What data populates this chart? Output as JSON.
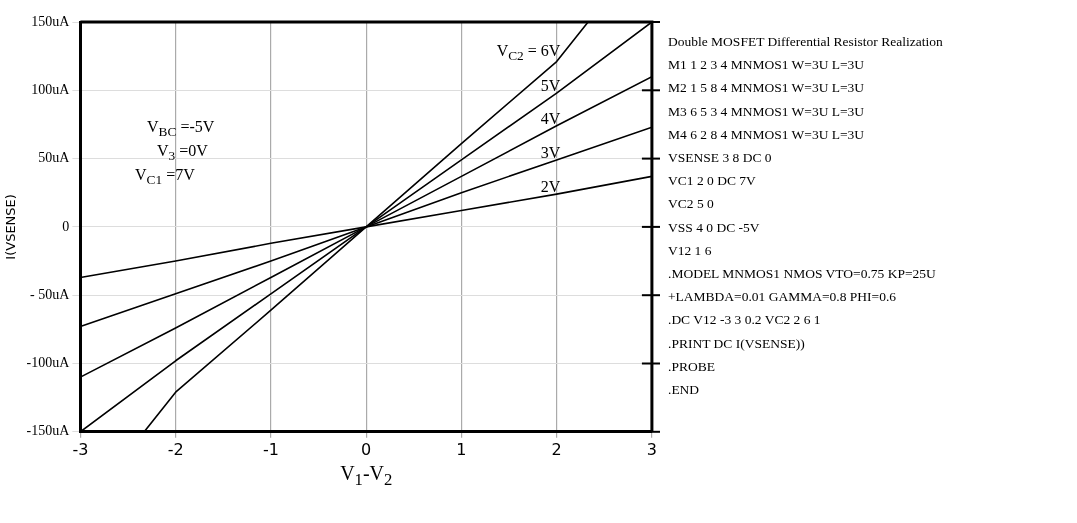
{
  "chart_data": {
    "type": "line",
    "title": "Double MOSFET Differential Resistor Realization",
    "xlabel": "V$_{1}$-V$_{2}$",
    "ylabel": "I(VSENSE)",
    "xlim": [
      -3,
      3
    ],
    "xticks": [
      -3,
      -2,
      -1,
      0,
      1,
      2,
      3
    ],
    "ylim": [
      -150,
      150
    ],
    "yticks": [
      {
        "value": -150,
        "label": "-150uA"
      },
      {
        "value": -100,
        "label": "-100uA"
      },
      {
        "value": -50,
        "label": "- 50uA"
      },
      0,
      {
        "value": 50,
        "label": "50uA"
      },
      {
        "value": 100,
        "label": "100uA"
      },
      {
        "value": 150,
        "label": "150uA"
      }
    ],
    "grid": true,
    "legend": false,
    "marker": "none",
    "line_style": "solid",
    "series": [
      {
        "name": "2V",
        "color": "#000000",
        "x": [
          -3,
          -2,
          -1,
          0,
          1,
          2,
          3
        ],
        "values": [
          -37,
          -25,
          -12,
          0,
          12,
          24,
          37
        ]
      },
      {
        "name": "3V",
        "color": "#000000",
        "x": [
          -3,
          -2,
          -1,
          0,
          1,
          2,
          3
        ],
        "values": [
          -73,
          -49,
          -25,
          0,
          25,
          49,
          73
        ]
      },
      {
        "name": "4V",
        "color": "#000000",
        "x": [
          -3,
          -2,
          -1,
          0,
          1,
          2,
          3
        ],
        "values": [
          -110,
          -74,
          -37,
          0,
          37,
          74,
          110
        ]
      },
      {
        "name": "5V",
        "color": "#000000",
        "x": [
          -3,
          -2,
          -1,
          0,
          1,
          2,
          3
        ],
        "values": [
          -150,
          -98,
          -49,
          0,
          49,
          98,
          150
        ]
      },
      {
        "name": "V$_{C2}$ = 6V",
        "color": "#000000",
        "x": [
          -2.33,
          -2,
          -1,
          0,
          1,
          2,
          2.33
        ],
        "values": [
          -150,
          -121,
          -61,
          0,
          61,
          121,
          150
        ]
      }
    ],
    "annotations": [
      "V$_{BC}$ =-5V",
      "V$_{3}$ =0V",
      "V$_{C1}$ =7V",
      "M1 1 2 3 4 MNMOS1 W=3U L=3U",
      "M2 1 5 8 4 MNMOS1 W=3U L=3U",
      "M3 6 5 3 4 MNMOS1 W=3U L=3U",
      "M4 6 2 8 4 MNMOS1 W=3U L=3U",
      "VSENSE 3 8 DC 0",
      "VC1 2 0 DC 7V",
      "VC2 5 0",
      "VSS 4 0 DC -5V",
      "V12 1 6",
      ".MODEL MNMOS1 NMOS VTO=0.75 KP=25U",
      "+LAMBDA=0.01 GAMMA=0.8 PHI=0.6",
      ".DC V12 -3 3 0.2 VC2 2 6 1",
      ".PRINT DC I(VSENSE))",
      ".PROBE",
      ".END"
    ]
  }
}
